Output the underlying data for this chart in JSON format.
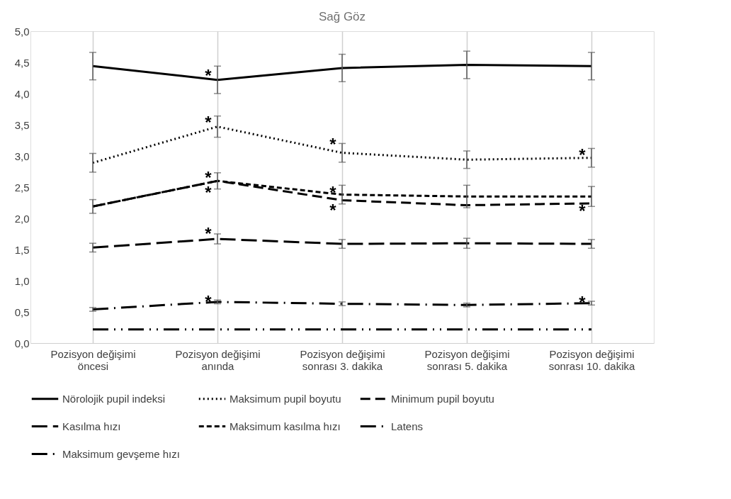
{
  "chart_data": {
    "type": "line",
    "title": "Sağ Göz",
    "categories": [
      "Pozisyon değişimi öncesi",
      "Pozisyon değişimi anında",
      "Pozisyon değişimi sonrası 3. dakika",
      "Pozisyon değişimi sonrası 5. dakika",
      "Pozisyon değişimi sonrası 10. dakika"
    ],
    "series": [
      {
        "name": "Nörolojik pupil indeksi",
        "color": "#000000",
        "line_style": "solid",
        "values": [
          4.44,
          4.22,
          4.41,
          4.46,
          4.44
        ],
        "errors": [
          0.22,
          0.22,
          0.22,
          0.22,
          0.22
        ]
      },
      {
        "name": "Maksimum pupil boyutu",
        "color": "#000000",
        "line_style": "dotted",
        "values": [
          2.89,
          3.47,
          3.05,
          2.94,
          2.97
        ],
        "errors": [
          0.15,
          0.17,
          0.15,
          0.14,
          0.15
        ]
      },
      {
        "name": "Minimum pupil boyutu",
        "color": "#000000",
        "line_style": "dashed",
        "values": [
          2.19,
          2.6,
          2.29,
          2.21,
          2.24
        ]
      },
      {
        "name": "Kasılma hızı",
        "color": "#000000",
        "line_style": "dashed",
        "values": [
          1.53,
          1.67,
          1.59,
          1.6,
          1.59
        ],
        "errors": [
          0.07,
          0.08,
          0.07,
          0.08,
          0.07
        ]
      },
      {
        "name": "Maksimum kasılma hızı",
        "color": "#000000",
        "line_style": "dashed",
        "values": [
          2.19,
          2.6,
          2.38,
          2.35,
          2.35
        ],
        "errors": [
          0.11,
          0.13,
          0.15,
          0.18,
          0.16
        ]
      },
      {
        "name": "Latens",
        "color": "#000000",
        "line_style": "dashed",
        "values": [
          0.54,
          0.66,
          0.63,
          0.61,
          0.64
        ],
        "errors": [
          0.03,
          0.03,
          0.03,
          0.03,
          0.03
        ]
      },
      {
        "name": "Maksimum gevşeme hızı",
        "color": "#000000",
        "line_style": "dashed",
        "values": [
          0.22,
          0.22,
          0.22,
          0.22,
          0.22
        ]
      }
    ],
    "ylim": [
      0,
      5
    ],
    "yticks": [
      {
        "value": 0,
        "label": "0,0"
      },
      {
        "value": 0.5,
        "label": "0,5"
      },
      {
        "value": 1,
        "label": "1,0"
      },
      {
        "value": 1.5,
        "label": "1,5"
      },
      {
        "value": 2,
        "label": "2,0"
      },
      {
        "value": 2.5,
        "label": "2,5"
      },
      {
        "value": 3,
        "label": "3,0"
      },
      {
        "value": 3.5,
        "label": "3,5"
      },
      {
        "value": 4,
        "label": "4,0"
      },
      {
        "value": 4.5,
        "label": "4,5"
      },
      {
        "value": 5,
        "label": "5,0"
      }
    ],
    "grid": "x",
    "legend": "bottom",
    "marker": "none",
    "annotations": [
      {
        "text": "*",
        "x": "Pozisyon değişimi anında",
        "y": 4.34
      },
      {
        "text": "*",
        "x": "Pozisyon değişimi anında",
        "y": 3.59
      },
      {
        "text": "*",
        "x": "Pozisyon değişimi sonrası 3. dakika",
        "y": 3.24
      },
      {
        "text": "*",
        "x": "Pozisyon değişimi sonrası 10. dakika",
        "y": 3.07
      },
      {
        "text": "*",
        "x": "Pozisyon değişimi anında",
        "y": 2.71
      },
      {
        "text": "*",
        "x": "Pozisyon değişimi anında",
        "y": 2.47
      },
      {
        "text": "*",
        "x": "Pozisyon değişimi sonrası 3. dakika",
        "y": 2.47
      },
      {
        "text": "*",
        "x": "Pozisyon değişimi sonrası 3. dakika",
        "y": 2.18
      },
      {
        "text": "*",
        "x": "Pozisyon değişimi sonrası 10. dakika",
        "y": 2.17
      },
      {
        "text": "*",
        "x": "Pozisyon değişimi anında",
        "y": 1.81
      },
      {
        "text": "*",
        "x": "Pozisyon değişimi anında",
        "y": 0.72
      },
      {
        "text": "*",
        "x": "Pozisyon değişimi sonrası 10. dakika",
        "y": 0.7
      }
    ]
  }
}
